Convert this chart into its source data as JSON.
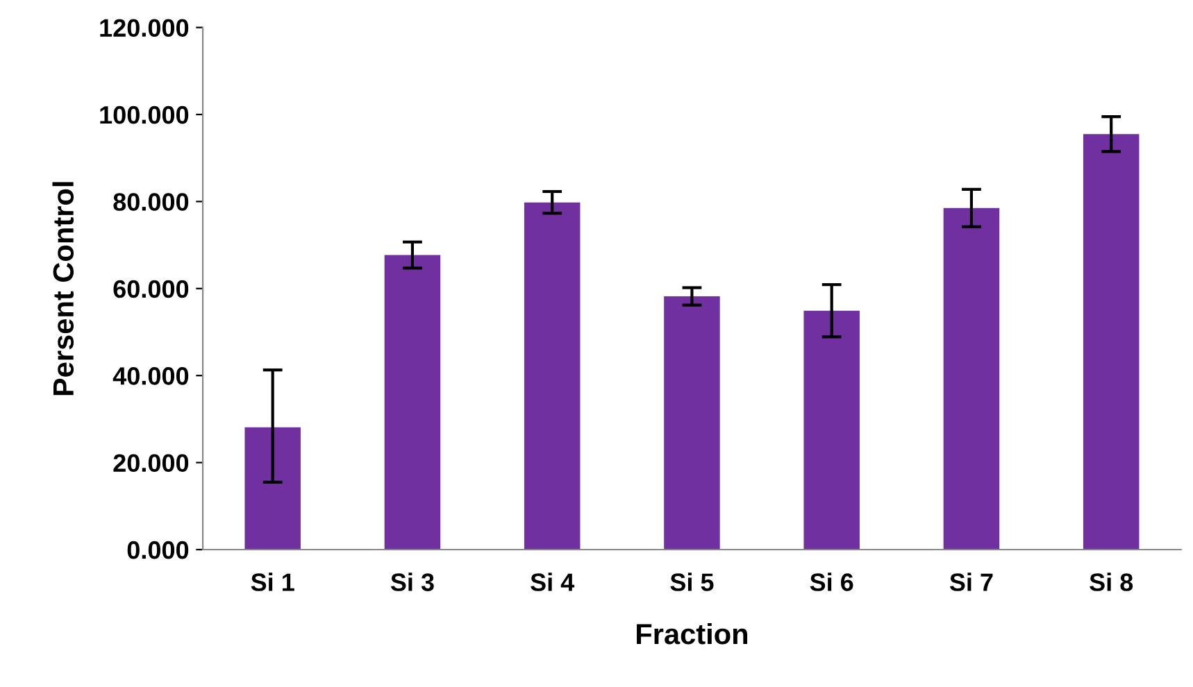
{
  "chart_data": {
    "type": "bar",
    "xlabel": "Fraction",
    "ylabel": "Persent Control",
    "categories": [
      "Si 1",
      "Si 3",
      "Si 4",
      "Si 5",
      "Si 6",
      "Si 7",
      "Si 8"
    ],
    "values": [
      28.1,
      67.7,
      79.8,
      58.2,
      54.9,
      78.5,
      95.5
    ],
    "errors": [
      [
        15.5,
        41.3
      ],
      3,
      2.5,
      2,
      6,
      4.3,
      4
    ],
    "color": "#7030a0",
    "ylim": [
      0,
      120
    ],
    "yticks": [
      {
        "value": 0,
        "label": "0.000"
      },
      {
        "value": 20,
        "label": "20.000"
      },
      {
        "value": 40,
        "label": "40.000"
      },
      {
        "value": 60,
        "label": "60.000"
      },
      {
        "value": 80,
        "label": "80.000"
      },
      {
        "value": 100,
        "label": "100.000"
      },
      {
        "value": 120,
        "label": "120.000"
      }
    ],
    "grid": false
  }
}
